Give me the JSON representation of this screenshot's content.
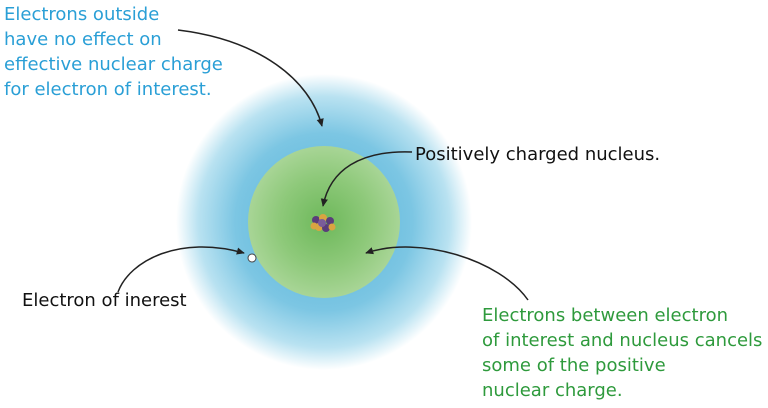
{
  "labels": {
    "outer_electrons": [
      "Electrons outside",
      "have no effect on",
      "effective nuclear charge",
      "for electron of interest."
    ],
    "nucleus": "Positively charged nucleus.",
    "electron_of_interest": "Electron of inerest",
    "inner_electrons": [
      "Electrons between electron",
      "of interest and nucleus cancels",
      "some of the positive",
      "nuclear charge."
    ]
  },
  "colors": {
    "outer_cloud": "#7cc6e3",
    "inner_cloud": "#8ec97a",
    "outer_text": "#2a9fd6",
    "inner_text": "#2e9a3c",
    "nucleus_purple": "#5a3d7a",
    "nucleus_gold": "#d9a441",
    "arrow": "#222222"
  }
}
